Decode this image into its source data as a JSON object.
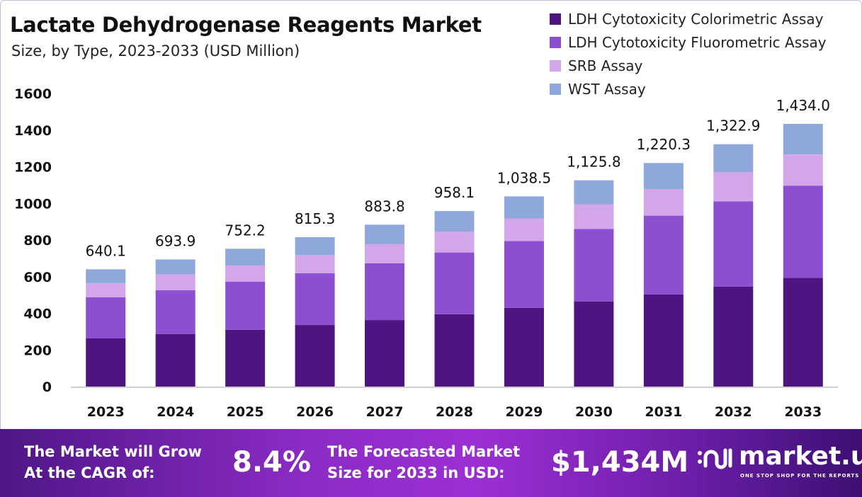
{
  "chart_data": {
    "type": "bar",
    "stacked": true,
    "title": "Lactate Dehydrogenase Reagents Market",
    "subtitle": "Size, by Type, 2023-2033 (USD Million)",
    "xlabel": "",
    "ylabel": "",
    "ylim": [
      0,
      1600
    ],
    "yticks": [
      0,
      200,
      400,
      600,
      800,
      1000,
      1200,
      1400,
      1600
    ],
    "grid": false,
    "legend_position": "top-right",
    "categories": [
      "2023",
      "2024",
      "2025",
      "2026",
      "2027",
      "2028",
      "2029",
      "2030",
      "2031",
      "2032",
      "2033"
    ],
    "series": [
      {
        "name": "LDH Cytotoxicity Colorimetric Assay",
        "color": "#4e1580",
        "values": [
          263,
          287,
          310,
          336,
          363,
          395,
          430,
          465,
          503,
          546,
          593
        ]
      },
      {
        "name": "LDH Cytotoxicity Fluorometric Assay",
        "color": "#8b4fcf",
        "values": [
          224,
          239,
          263,
          283,
          310,
          337,
          364,
          395,
          430,
          465,
          504
        ]
      },
      {
        "name": "SRB Assay",
        "color": "#d3a6ea",
        "values": [
          78,
          86,
          88,
          100,
          104,
          113,
          124,
          135,
          144,
          159,
          170
        ]
      },
      {
        "name": "WST Assay",
        "color": "#8ea8dc",
        "values": [
          75.1,
          81.9,
          91.2,
          96.3,
          106.8,
          113.1,
          120.5,
          130.8,
          143.3,
          152.9,
          167.0
        ]
      }
    ],
    "totals_labels": [
      "640.1",
      "693.9",
      "752.2",
      "815.3",
      "883.8",
      "958.1",
      "1,038.5",
      "1,125.8",
      "1,220.3",
      "1,322.9",
      "1,434.0"
    ],
    "totals": [
      640.1,
      693.9,
      752.2,
      815.3,
      883.8,
      958.1,
      1038.5,
      1125.8,
      1220.3,
      1322.9,
      1434.0
    ]
  },
  "footer": {
    "cagr_text_1": "The Market will Grow",
    "cagr_text_2": "At the CAGR of:",
    "cagr_value": "8.4%",
    "forecast_text_1": "The Forecasted Market",
    "forecast_text_2": "Size for 2033 in USD:",
    "forecast_value": "$1,434M",
    "brand": "market.us",
    "tagline": "ONE STOP SHOP FOR THE REPORTS"
  }
}
